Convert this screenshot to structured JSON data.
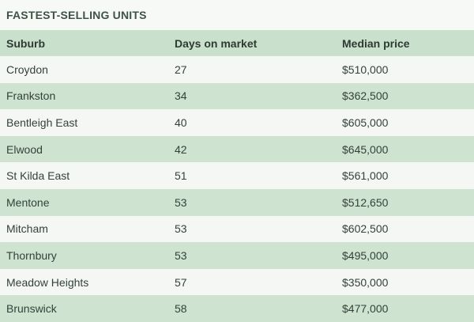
{
  "title": "FASTEST-SELLING UNITS",
  "columns": [
    "Suburb",
    "Days on market",
    "Median price"
  ],
  "rows": [
    {
      "suburb": "Croydon",
      "days": "27",
      "price": "$510,000"
    },
    {
      "suburb": "Frankston",
      "days": "34",
      "price": "$362,500"
    },
    {
      "suburb": "Bentleigh East",
      "days": "40",
      "price": "$605,000"
    },
    {
      "suburb": "Elwood",
      "days": "42",
      "price": "$645,000"
    },
    {
      "suburb": "St Kilda East",
      "days": "51",
      "price": "$561,000"
    },
    {
      "suburb": "Mentone",
      "days": "53",
      "price": "$512,650"
    },
    {
      "suburb": "Mitcham",
      "days": "53",
      "price": "$602,500"
    },
    {
      "suburb": "Thornbury",
      "days": "53",
      "price": "$495,000"
    },
    {
      "suburb": "Meadow Heights",
      "days": "57",
      "price": "$350,000"
    },
    {
      "suburb": "Brunswick",
      "days": "58",
      "price": "$477,000"
    }
  ],
  "colors": {
    "header_bg": "#c9e0cc",
    "row_odd": "#f4f7f4",
    "row_even": "#cfe3d1",
    "title": "#3e5347"
  }
}
